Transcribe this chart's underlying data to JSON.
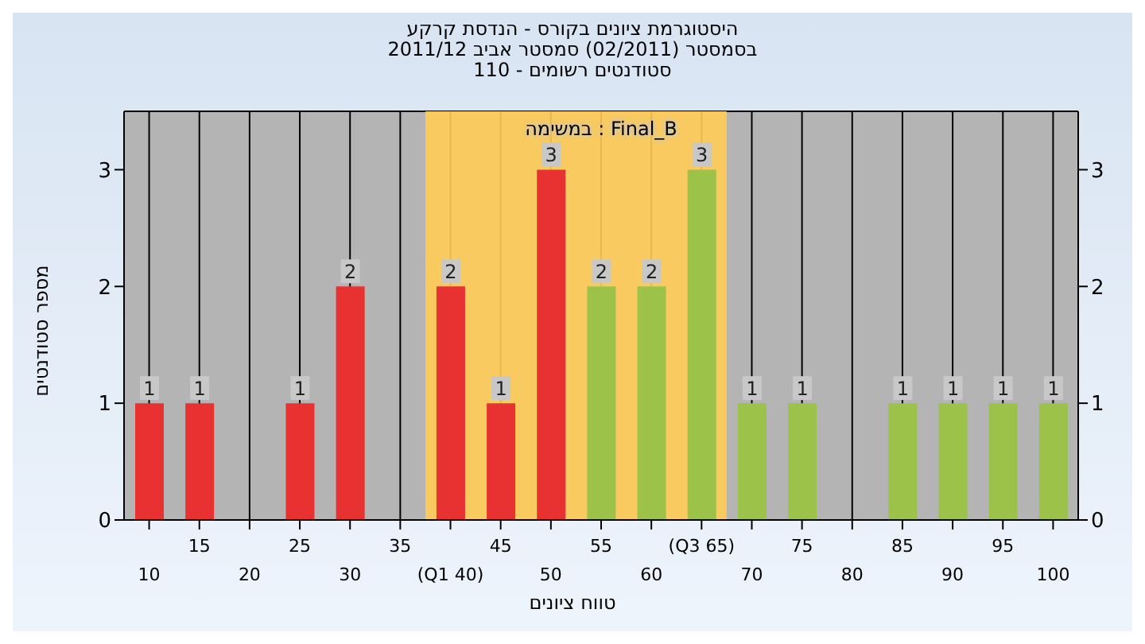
{
  "chart_data": {
    "type": "bar",
    "title": "היסטוגרמת ציונים בקורס - הנדסת קרקע",
    "subtitle": "בסמסטר (02/2011) סמסטר אביב 2011/12\nסטודנטים רשומים - 110",
    "xlabel": "טווח ציונים",
    "ylabel": "מספר סטודנטים",
    "annotations": [
      "במשימה : Final_B"
    ],
    "categories": [
      "10",
      "15",
      "20",
      "25",
      "30",
      "35",
      "(Q1 40)",
      "45",
      "50",
      "55",
      "60",
      "(Q3 65)",
      "70",
      "75",
      "80",
      "85",
      "90",
      "95",
      "100"
    ],
    "values": [
      1,
      1,
      0,
      1,
      2,
      0,
      2,
      1,
      3,
      2,
      2,
      3,
      1,
      1,
      0,
      1,
      1,
      1,
      1
    ],
    "colors": [
      "#e83232",
      "#e83232",
      "#e83232",
      "#e83232",
      "#e83232",
      "#e83232",
      "#e83232",
      "#e83232",
      "#e83232",
      "#9cc24a",
      "#9cc24a",
      "#9cc24a",
      "#9cc24a",
      "#9cc24a",
      "#9cc24a",
      "#9cc24a",
      "#9cc24a",
      "#9cc24a",
      "#9cc24a"
    ],
    "value_labels": [
      "1",
      "1",
      null,
      "1",
      "2",
      null,
      "2",
      "1",
      "3",
      "2",
      "2",
      "3",
      "1",
      "1",
      null,
      "1",
      "1",
      "1",
      "1"
    ],
    "bands": [
      {
        "axis": "x",
        "from": "(Q1 40)",
        "to": "(Q3 65)",
        "color": "#ffcc55"
      }
    ],
    "ylim": [
      0,
      3.5
    ],
    "yticks": [
      0,
      1,
      2,
      3
    ],
    "y2lim": [
      0,
      3.5
    ],
    "y2ticks": [
      0,
      1,
      2,
      3
    ],
    "grid": true
  }
}
